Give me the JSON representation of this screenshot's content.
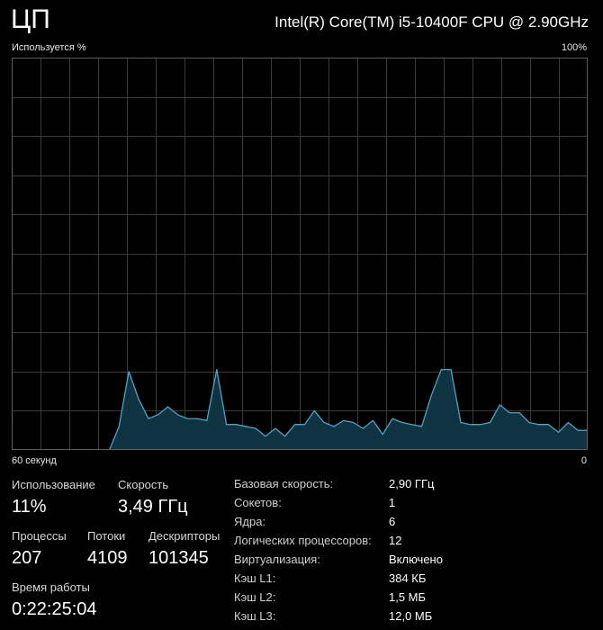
{
  "header": {
    "title": "ЦП",
    "cpu_model": "Intel(R) Core(TM) i5-10400F CPU @ 2.90GHz"
  },
  "graph": {
    "y_axis_label": "Используется %",
    "y_max_label": "100%",
    "x_axis_label": "60 секунд",
    "x_min_label": "0",
    "line_color": "#4ba5c8",
    "fill_color": "#0f3340",
    "grid_color": "#3a3a3a",
    "border_color": "#5e5e5e"
  },
  "chart_data": {
    "type": "area",
    "ylim": [
      0,
      100
    ],
    "xlim": [
      60,
      0
    ],
    "grid": true,
    "series": [
      {
        "values": [
          0,
          0,
          0,
          0,
          0,
          0,
          0,
          0,
          0,
          0,
          0,
          6,
          20,
          13,
          8,
          9,
          11,
          9,
          8,
          8,
          7.5,
          20.5,
          6.5,
          6.5,
          6,
          5.5,
          3.5,
          5.5,
          3.5,
          6.5,
          6.5,
          10,
          7,
          6,
          7.5,
          7,
          5.5,
          7.5,
          4,
          8,
          7,
          6.5,
          6,
          14,
          20.5,
          20.5,
          7,
          6.5,
          6.5,
          7,
          11.5,
          9.5,
          9.5,
          7,
          6.5,
          6.5,
          4.5,
          7,
          5,
          5
        ]
      }
    ]
  },
  "stats": {
    "usage": {
      "label": "Использование",
      "value": "11%"
    },
    "speed": {
      "label": "Скорость",
      "value": "3,49 ГГц"
    },
    "processes": {
      "label": "Процессы",
      "value": "207"
    },
    "threads": {
      "label": "Потоки",
      "value": "4109"
    },
    "handles": {
      "label": "Дескрипторы",
      "value": "101345"
    },
    "uptime": {
      "label": "Время работы",
      "value": "0:22:25:04"
    }
  },
  "details": [
    {
      "key": "Базовая скорость:",
      "value": "2,90 ГГц"
    },
    {
      "key": "Сокетов:",
      "value": "1"
    },
    {
      "key": "Ядра:",
      "value": "6"
    },
    {
      "key": "Логических процессоров:",
      "value": "12"
    },
    {
      "key": "Виртуализация:",
      "value": "Включено"
    },
    {
      "key": "Кэш L1:",
      "value": "384 КБ"
    },
    {
      "key": "Кэш L2:",
      "value": "1,5 МБ"
    },
    {
      "key": "Кэш L3:",
      "value": "12,0 МБ"
    }
  ]
}
